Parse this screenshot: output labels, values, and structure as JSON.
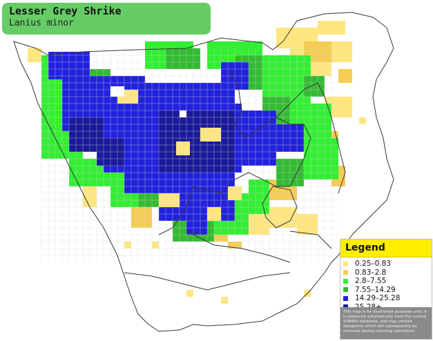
{
  "header": {
    "common_name": "Lesser Grey Shrike",
    "scientific_name": "Lanius minor"
  },
  "legend": {
    "title": "Legend",
    "items": [
      {
        "label": "0.25–0.83",
        "color": "#ffe680"
      },
      {
        "label": "0.83–2.8",
        "color": "#f5cc55"
      },
      {
        "label": "2.8–7.55",
        "color": "#33ee33"
      },
      {
        "label": "7.55–14.29",
        "color": "#33bb33"
      },
      {
        "label": "14.29–25.28",
        "color": "#2222dd"
      },
      {
        "label": "25.28+",
        "color": "#1a1a99"
      }
    ],
    "disclaimer": "This map is for illustrative purposes only; it is produced automatically from the current SABAP2 database, and may contain datapoints which will subsequently be removed during checking operations."
  },
  "map_colors": {
    "land": "#ffffff",
    "border": "#333333",
    "grid": "#d9d9d9"
  }
}
